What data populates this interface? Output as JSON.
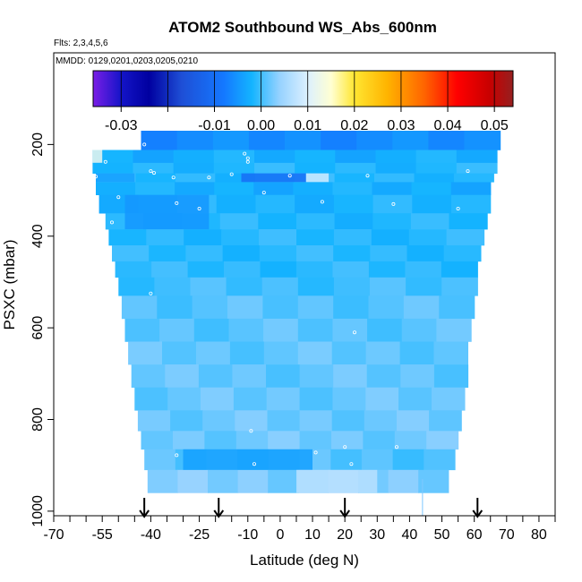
{
  "chart_data": {
    "type": "heatmap",
    "title": "ATOM2 Southbound WS_Abs_600nm",
    "flights_note": "Flts: 2,3,4,5,6",
    "dates_note": "MMDD: 0129,0201,0203,0205,0210",
    "xlabel": "Latitude (deg N)",
    "ylabel": "PSXC (mbar)",
    "xlim": [
      -70,
      85
    ],
    "ylim": [
      1010,
      0
    ],
    "x_ticks": [
      -70,
      -55,
      -40,
      -25,
      -10,
      0,
      10,
      20,
      30,
      40,
      50,
      60,
      70,
      80
    ],
    "x_tick_labels": [
      "-70",
      "-55",
      "-40",
      "-25",
      "-10",
      "0",
      "10",
      "20",
      "30",
      "40",
      "50",
      "60",
      "70",
      "80"
    ],
    "x_minor_ticks": [
      -65,
      -60,
      -50,
      -45,
      -35,
      -30,
      -20,
      -15,
      -5,
      5,
      15,
      25,
      35,
      45,
      55,
      65,
      75,
      85
    ],
    "y_ticks": [
      200,
      400,
      600,
      800,
      1000
    ],
    "y_tick_labels": [
      "200",
      "400",
      "600",
      "800",
      "1000"
    ],
    "colorbar": {
      "colors": [
        "#7a1ee6",
        "#1414c8",
        "#0000a0",
        "#1e4fd6",
        "#1478ff",
        "#14b4ff",
        "#96d2ff",
        "#dcf0ff",
        "#ffffd2",
        "#ffe632",
        "#ffb400",
        "#ff6400",
        "#ff0000",
        "#c80000",
        "#962020"
      ],
      "stops": [
        -0.036,
        -0.03,
        -0.024,
        -0.017,
        -0.008,
        -0.002,
        0.004,
        0.01,
        0.015,
        0.02,
        0.027,
        0.035,
        0.042,
        0.049,
        0.054
      ],
      "range": [
        -0.036,
        0.054
      ],
      "boundaries": [
        -0.03,
        -0.02,
        -0.01,
        0.0,
        0.01,
        0.02,
        0.03,
        0.04,
        0.05
      ],
      "tick_values": [
        -0.03,
        -0.01,
        0.0,
        0.01,
        0.02,
        0.03,
        0.04,
        0.05
      ],
      "tick_labels": [
        "-0.03",
        "-0.01",
        "0.00",
        "0.01",
        "0.02",
        "0.03",
        "0.04",
        "0.05"
      ]
    },
    "flight_arrows_lat": [
      -42,
      -19,
      20,
      61
    ],
    "vertical_marker_lat": 44,
    "rows": [
      {
        "p_top": 170,
        "p_bot": 212,
        "lat_min": -43,
        "lat_max": 68,
        "value": -0.006
      },
      {
        "p_top": 212,
        "p_bot": 240,
        "lat_min": -58,
        "lat_max": 67,
        "value": -0.0025
      },
      {
        "p_top": 240,
        "p_bot": 263,
        "lat_min": -58,
        "lat_max": 67,
        "value": -0.0015
      },
      {
        "p_top": 263,
        "p_bot": 282,
        "lat_min": -57,
        "lat_max": 66,
        "value": -0.0012
      },
      {
        "p_top": 282,
        "p_bot": 310,
        "lat_min": -57,
        "lat_max": 65,
        "value": -0.0025
      },
      {
        "p_top": 310,
        "p_bot": 350,
        "lat_min": -56,
        "lat_max": 65,
        "value": -0.0018
      },
      {
        "p_top": 350,
        "p_bot": 385,
        "lat_min": -54,
        "lat_max": 64,
        "value": -0.0015
      },
      {
        "p_top": 385,
        "p_bot": 420,
        "lat_min": -53,
        "lat_max": 63,
        "value": -0.0012
      },
      {
        "p_top": 420,
        "p_bot": 455,
        "lat_min": -52,
        "lat_max": 62,
        "value": -0.0011
      },
      {
        "p_top": 455,
        "p_bot": 490,
        "lat_min": -51,
        "lat_max": 61,
        "value": -0.001
      },
      {
        "p_top": 490,
        "p_bot": 530,
        "lat_min": -50,
        "lat_max": 61,
        "value": 0.0
      },
      {
        "p_top": 530,
        "p_bot": 580,
        "lat_min": -49,
        "lat_max": 60,
        "value": 0.001
      },
      {
        "p_top": 580,
        "p_bot": 630,
        "lat_min": -48,
        "lat_max": 59,
        "value": 0.0012
      },
      {
        "p_top": 630,
        "p_bot": 680,
        "lat_min": -47,
        "lat_max": 58,
        "value": 0.0015
      },
      {
        "p_top": 680,
        "p_bot": 730,
        "lat_min": -46,
        "lat_max": 58,
        "value": 0.0016
      },
      {
        "p_top": 730,
        "p_bot": 780,
        "lat_min": -45,
        "lat_max": 57,
        "value": 0.0018
      },
      {
        "p_top": 780,
        "p_bot": 825,
        "lat_min": -44,
        "lat_max": 56,
        "value": 0.002
      },
      {
        "p_top": 825,
        "p_bot": 865,
        "lat_min": -43,
        "lat_max": 55,
        "value": 0.0022
      },
      {
        "p_top": 865,
        "p_bot": 910,
        "lat_min": -42,
        "lat_max": 54,
        "value": 0.0008
      },
      {
        "p_top": 910,
        "p_bot": 960,
        "lat_min": -41,
        "lat_max": 52,
        "value": 0.003
      }
    ],
    "features": [
      {
        "p_top": 212,
        "p_bot": 240,
        "lat_min": -58,
        "lat_max": -55,
        "value": 0.012
      },
      {
        "p_top": 263,
        "p_bot": 282,
        "lat_min": -57,
        "lat_max": -45,
        "value": -0.004
      },
      {
        "p_top": 263,
        "p_bot": 282,
        "lat_min": -12,
        "lat_max": 8,
        "value": -0.01
      },
      {
        "p_top": 263,
        "p_bot": 282,
        "lat_min": 8,
        "lat_max": 15,
        "value": 0.009
      },
      {
        "p_top": 310,
        "p_bot": 385,
        "lat_min": -48,
        "lat_max": -22,
        "value": -0.005
      },
      {
        "p_top": 865,
        "p_bot": 910,
        "lat_min": -30,
        "lat_max": 10,
        "value": -0.004
      },
      {
        "p_top": 910,
        "p_bot": 960,
        "lat_min": 5,
        "lat_max": 30,
        "value": 0.007
      }
    ],
    "sample_points": [
      {
        "lat": -42,
        "p": 200
      },
      {
        "lat": -54,
        "p": 238
      },
      {
        "lat": -40,
        "p": 258
      },
      {
        "lat": -39,
        "p": 262
      },
      {
        "lat": -33,
        "p": 272
      },
      {
        "lat": -22,
        "p": 272
      },
      {
        "lat": -15,
        "p": 265
      },
      {
        "lat": -11,
        "p": 220
      },
      {
        "lat": -10,
        "p": 230
      },
      {
        "lat": -10,
        "p": 238
      },
      {
        "lat": 3,
        "p": 268
      },
      {
        "lat": 27,
        "p": 268
      },
      {
        "lat": -5,
        "p": 305
      },
      {
        "lat": -50,
        "p": 315
      },
      {
        "lat": -32,
        "p": 328
      },
      {
        "lat": -25,
        "p": 340
      },
      {
        "lat": 13,
        "p": 325
      },
      {
        "lat": 35,
        "p": 330
      },
      {
        "lat": 55,
        "p": 340
      },
      {
        "lat": -57,
        "p": 270
      },
      {
        "lat": -40,
        "p": 525
      },
      {
        "lat": 23,
        "p": 610
      },
      {
        "lat": -9,
        "p": 825
      },
      {
        "lat": 20,
        "p": 860
      },
      {
        "lat": 11,
        "p": 872
      },
      {
        "lat": -32,
        "p": 878
      },
      {
        "lat": -8,
        "p": 897
      },
      {
        "lat": 22,
        "p": 897
      },
      {
        "lat": 36,
        "p": 860
      },
      {
        "lat": -52,
        "p": 370
      },
      {
        "lat": -67,
        "p": 257
      },
      {
        "lat": 58,
        "p": 258
      }
    ]
  }
}
